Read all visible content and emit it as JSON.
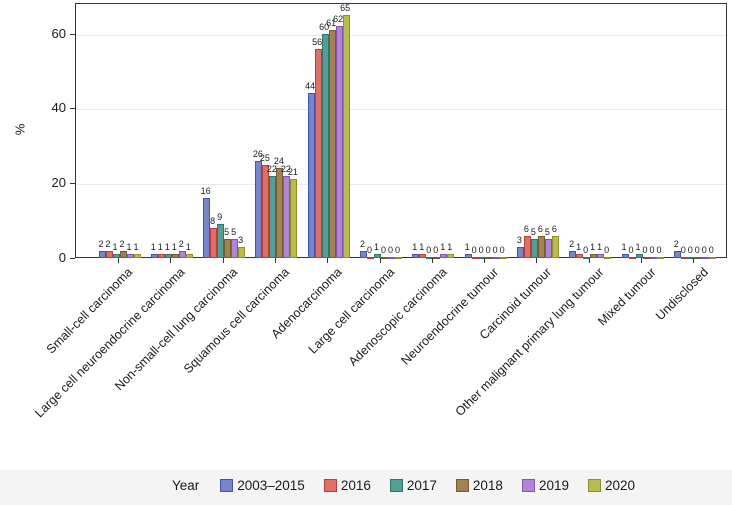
{
  "chart_data": {
    "type": "bar",
    "title": "",
    "ylabel": "%",
    "ylim": [
      0,
      68
    ],
    "yticks": [
      0,
      20,
      40,
      60
    ],
    "grid": "horizontal major gridlines only",
    "legend_title": "Year",
    "legend_position": "bottom",
    "bar_value_labels": true,
    "categories": [
      "Small-cell carcinoma",
      "Large cell neuroendocrine carcinoma",
      "Non-small-cell lung carcinoma",
      "Squamous cell carcinoma",
      "Adenocarcinoma",
      "Large cell carcinoma",
      "Adenoscopic carcinoma",
      "Neuroendocrine tumour",
      "Carcinoid tumour",
      "Other malignant primary lung tumour",
      "Mixed tumour",
      "Undisclosed"
    ],
    "series": [
      {
        "name": "2003–2015",
        "color": "#7885cd",
        "border": "#4253a8",
        "values": [
          2,
          1,
          16,
          26,
          44,
          2,
          1,
          1,
          3,
          2,
          1,
          2
        ]
      },
      {
        "name": "2016",
        "color": "#de7067",
        "border": "#b6413a",
        "values": [
          2,
          1,
          8,
          25,
          56,
          0,
          1,
          0,
          6,
          1,
          0,
          0
        ]
      },
      {
        "name": "2017",
        "color": "#559e96",
        "border": "#2f756d",
        "values": [
          1,
          1,
          9,
          22,
          60,
          1,
          0,
          0,
          5,
          0,
          1,
          0
        ]
      },
      {
        "name": "2018",
        "color": "#a18252",
        "border": "#745a2f",
        "values": [
          2,
          1,
          5,
          24,
          61,
          0,
          0,
          0,
          6,
          1,
          0,
          0
        ]
      },
      {
        "name": "2019",
        "color": "#b184d6",
        "border": "#8153b4",
        "values": [
          1,
          2,
          5,
          22,
          62,
          0,
          1,
          0,
          5,
          1,
          0,
          0
        ]
      },
      {
        "name": "2020",
        "color": "#b8bb4d",
        "border": "#8e9226",
        "values": [
          1,
          1,
          3,
          21,
          65,
          0,
          1,
          0,
          6,
          0,
          0,
          0
        ]
      }
    ]
  }
}
